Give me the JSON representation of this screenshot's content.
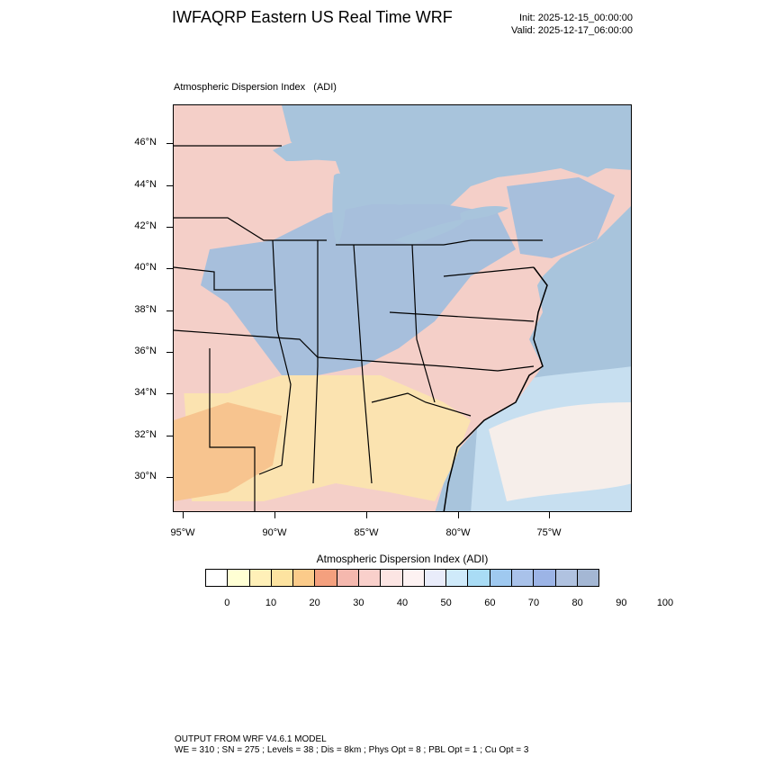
{
  "header": {
    "title": "IWFAQRP Eastern US Real Time WRF",
    "init": "Init: 2025-12-15_00:00:00",
    "valid": "Valid: 2025-12-17_06:00:00"
  },
  "map": {
    "subtitle": "Atmospheric Dispersion Index   (ADI)",
    "lat_labels": [
      "46°N",
      "44°N",
      "42°N",
      "40°N",
      "38°N",
      "36°N",
      "34°N",
      "32°N",
      "30°N"
    ],
    "lon_labels": [
      "95°W",
      "90°W",
      "85°W",
      "80°W",
      "75°W"
    ],
    "colors": {
      "water": "#a8c4dc",
      "land_blue": "#a7bfdc",
      "land_pink": "#f4cfc8",
      "land_yellow": "#fbe3b0",
      "land_orange": "#f7c48f",
      "ocean_light": "#c7dff0",
      "ocean_pale": "#f6eeea"
    }
  },
  "colorbar": {
    "title": "Atmospheric Dispersion Index  (ADI)",
    "labels": [
      "0",
      "10",
      "20",
      "30",
      "40",
      "50",
      "60",
      "70",
      "80",
      "90",
      "100"
    ],
    "colors": [
      "#ffffff",
      "#ffffd4",
      "#fff0b8",
      "#fde3a0",
      "#fbcb8a",
      "#f4a07e",
      "#f5b8ae",
      "#f9d0cb",
      "#fce5e3",
      "#fdf2f2",
      "#e9ecfa",
      "#cfeafa",
      "#a9dcf5",
      "#9fc9f0",
      "#a9c2ea",
      "#9cb4e6",
      "#b0c2e0",
      "#a4b7d4"
    ]
  },
  "footer": {
    "line1": "OUTPUT FROM WRF V4.6.1 MODEL",
    "line2": "WE = 310 ; SN = 275 ; Levels = 38 ; Dis = 8km ; Phys Opt = 8 ; PBL Opt = 1 ; Cu Opt = 3"
  }
}
